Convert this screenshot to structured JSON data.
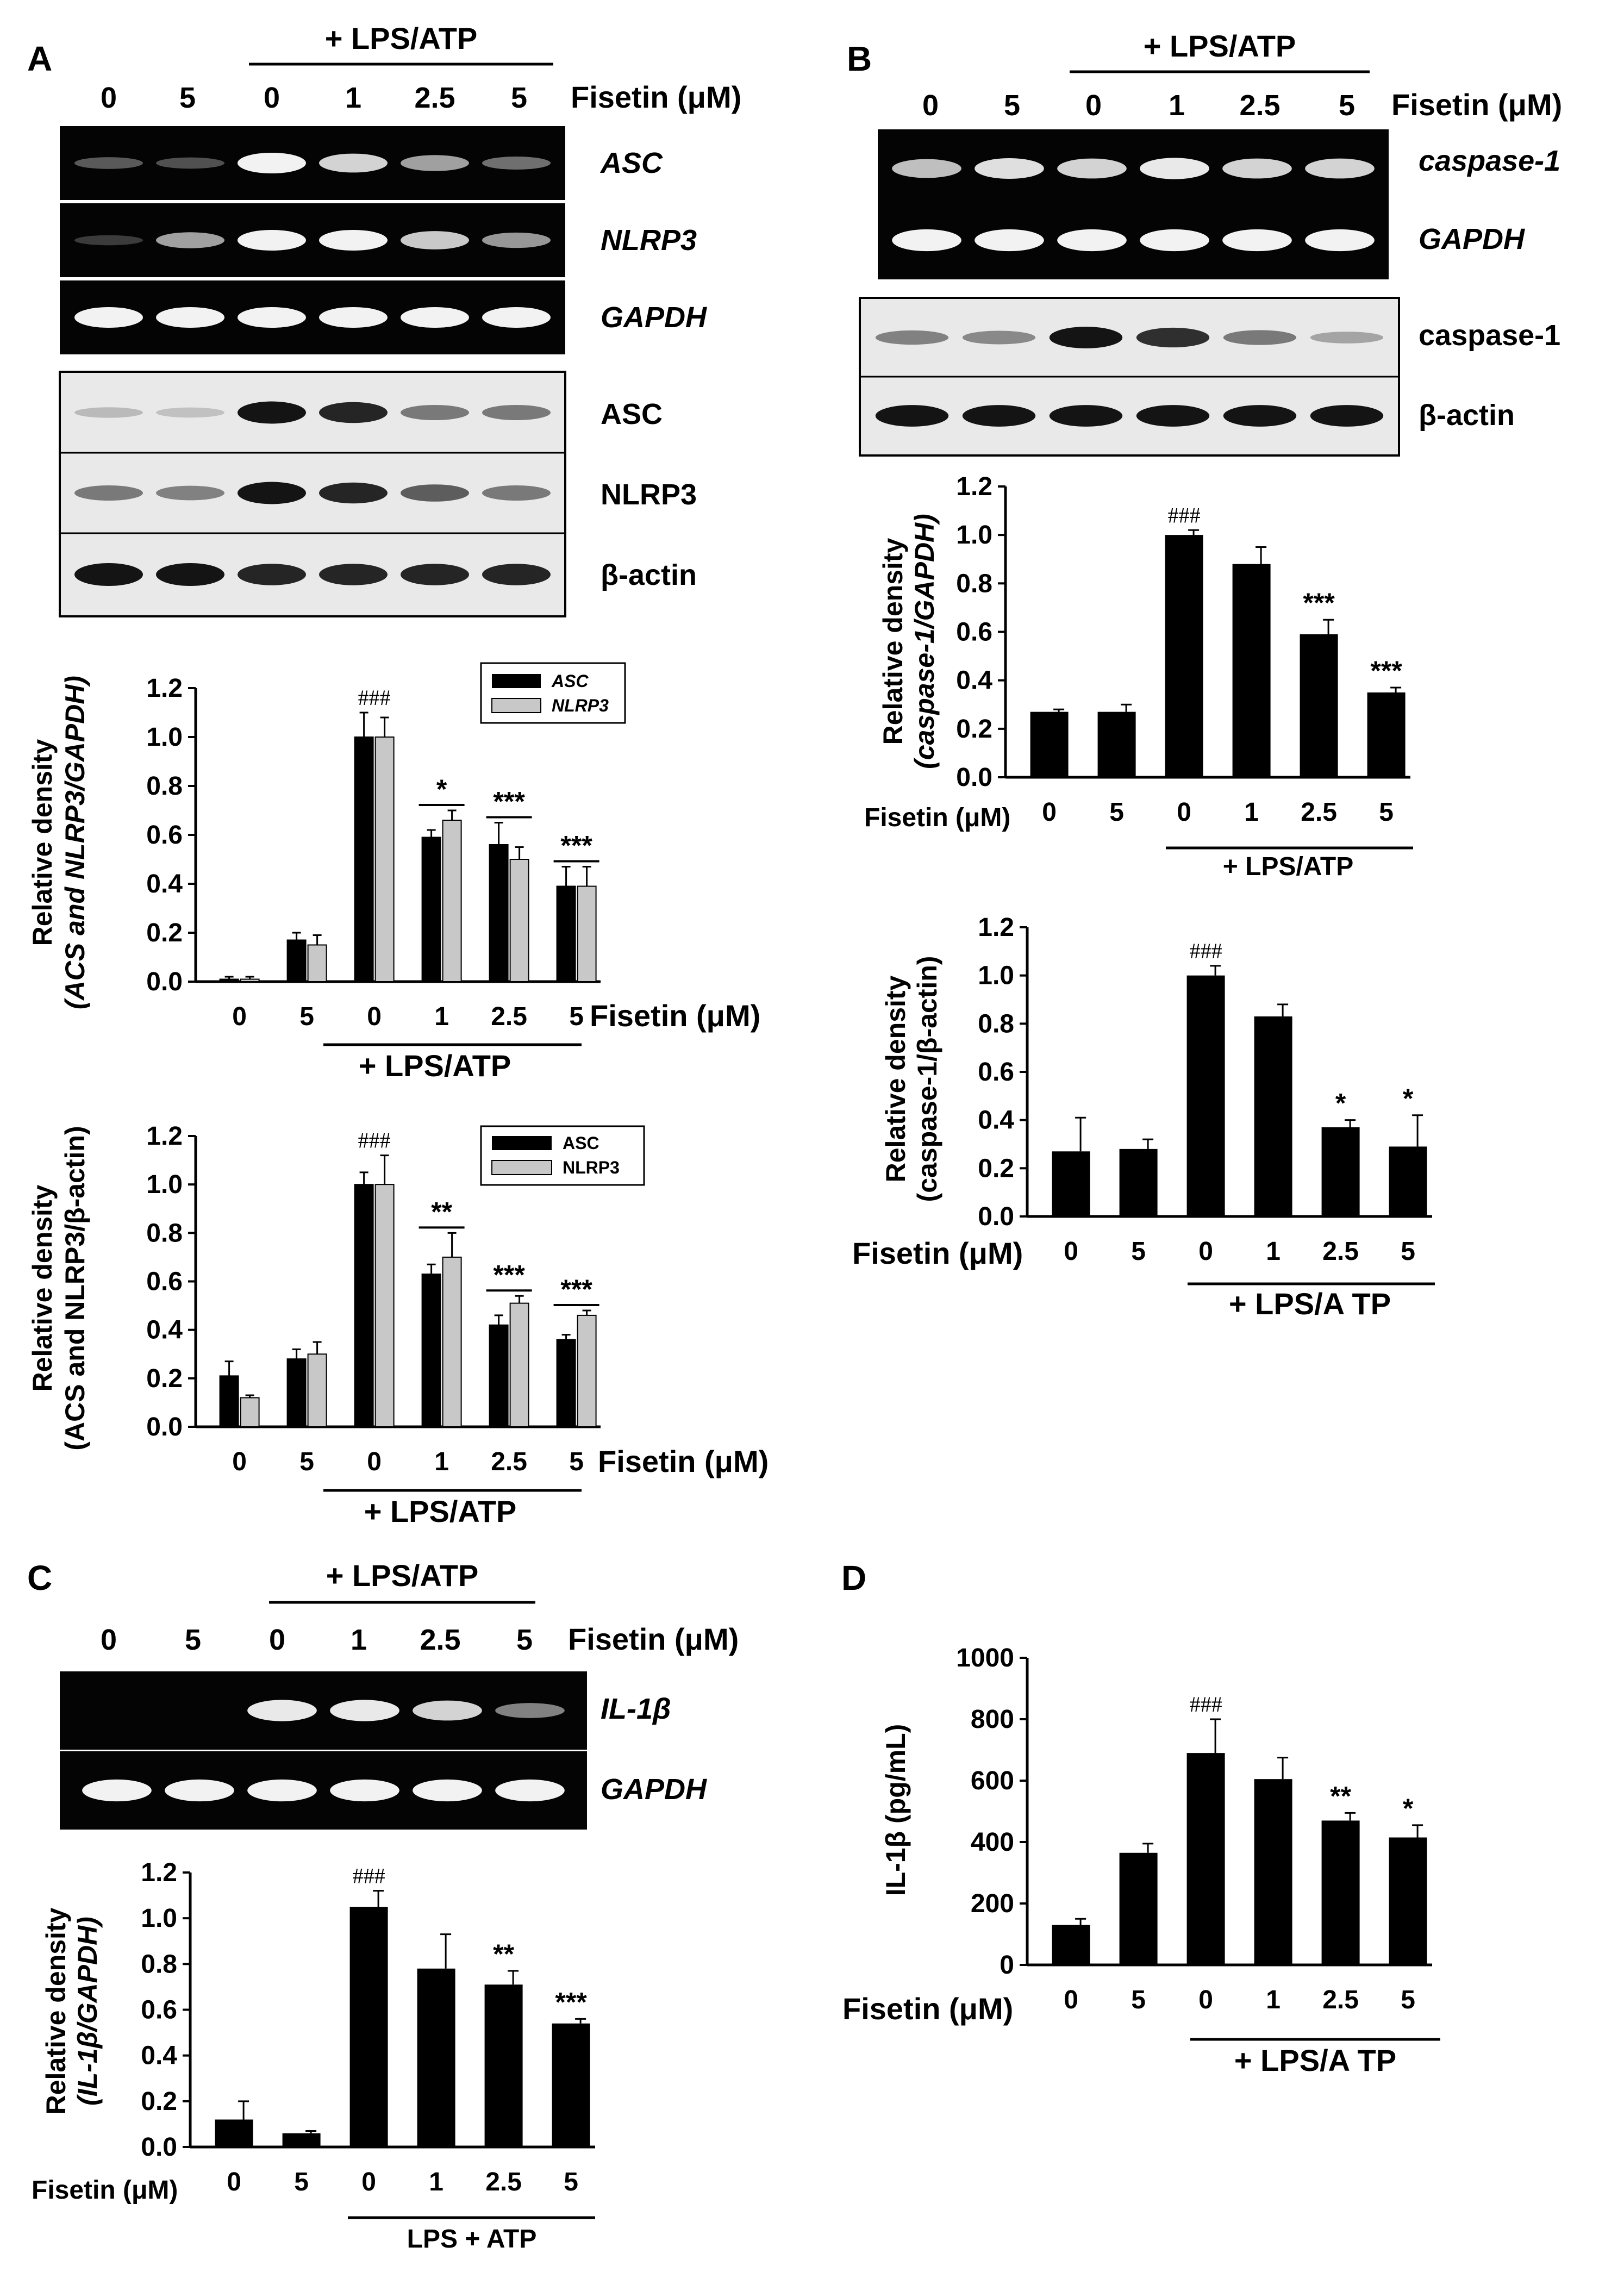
{
  "colors": {
    "bar_dark": "#000000",
    "bar_light": "#c8c8c8",
    "gel_bg": "#040404",
    "gel_band": "#f2f2f2",
    "wb_bg": "#e9e9e9",
    "wb_band": "#141414"
  },
  "common": {
    "lps_atp": "+ LPS/ATP",
    "lps_atp_alt": "+ LPS/A TP",
    "lps_plus_atp": "LPS + ATP",
    "fisetin_uM": "Fisetin (μM)",
    "lanes": [
      "0",
      "5",
      "0",
      "1",
      "2.5",
      "5"
    ]
  },
  "panel_A": {
    "letter": "A",
    "gel_labels": [
      "ASC",
      "NLRP3",
      "GAPDH"
    ],
    "blot_labels": [
      "ASC",
      "NLRP3",
      "β-actin"
    ],
    "gel_band_intensity": {
      "ASC": [
        0.25,
        0.2,
        1.0,
        0.85,
        0.6,
        0.35
      ],
      "NLRP3": [
        0.1,
        0.6,
        1.0,
        1.0,
        0.8,
        0.55
      ],
      "GAPDH": [
        1.0,
        1.0,
        1.0,
        1.0,
        1.0,
        1.0
      ]
    },
    "blot_band_intensity": {
      "ASC": [
        0.08,
        0.05,
        1.0,
        0.9,
        0.45,
        0.45
      ],
      "NLRP3": [
        0.45,
        0.4,
        1.0,
        0.9,
        0.6,
        0.45
      ],
      "beta_actin": [
        1.0,
        1.0,
        0.9,
        0.9,
        0.9,
        0.9
      ]
    }
  },
  "panel_B": {
    "letter": "B",
    "gel_labels": [
      "caspase-1",
      "GAPDH"
    ],
    "blot_labels": [
      "caspase-1",
      "β-actin"
    ],
    "gel_band_intensity": {
      "caspase1": [
        0.75,
        0.9,
        0.85,
        0.95,
        0.85,
        0.85
      ],
      "GAPDH": [
        1.0,
        1.0,
        1.0,
        1.0,
        1.0,
        1.0
      ]
    },
    "blot_band_intensity": {
      "caspase1": [
        0.4,
        0.35,
        1.0,
        0.85,
        0.45,
        0.2
      ],
      "beta_actin": [
        1.0,
        1.0,
        1.0,
        1.0,
        1.0,
        1.0
      ]
    }
  },
  "panel_C": {
    "letter": "C",
    "gel_labels": [
      "IL-1β",
      "GAPDH"
    ],
    "gel_band_intensity": {
      "IL1b": [
        0.0,
        0.0,
        0.95,
        0.95,
        0.85,
        0.45
      ],
      "GAPDH": [
        1.0,
        1.0,
        1.0,
        1.0,
        1.0,
        1.0
      ]
    }
  },
  "panel_D": {
    "letter": "D"
  },
  "chart_data": [
    {
      "id": "A1",
      "type": "bar",
      "categories": [
        "0",
        "5",
        "0",
        "1",
        "2.5",
        "5"
      ],
      "series": [
        {
          "name": "ASC",
          "values": [
            0.01,
            0.17,
            1.0,
            0.59,
            0.56,
            0.39
          ],
          "errors": [
            0.01,
            0.03,
            0.1,
            0.03,
            0.09,
            0.08
          ]
        },
        {
          "name": "NLRP3",
          "values": [
            0.01,
            0.15,
            1.0,
            0.66,
            0.5,
            0.39
          ],
          "errors": [
            0.01,
            0.04,
            0.08,
            0.04,
            0.05,
            0.08
          ]
        }
      ],
      "ylabel_top": "Relative density",
      "ylabel_bottom": "(ACS and NLRP3/GAPDH)",
      "ylim": [
        0,
        1.2
      ],
      "yticks": [
        "0.0",
        "0.2",
        "0.4",
        "0.6",
        "0.8",
        "1.0",
        "1.2"
      ],
      "annotations": [
        "",
        "",
        "###",
        "*",
        "***",
        "***"
      ],
      "legend": [
        "ASC",
        "NLRP3"
      ]
    },
    {
      "id": "A2",
      "type": "bar",
      "categories": [
        "0",
        "5",
        "0",
        "1",
        "2.5",
        "5"
      ],
      "series": [
        {
          "name": "ASC",
          "values": [
            0.21,
            0.28,
            1.0,
            0.63,
            0.42,
            0.36
          ],
          "errors": [
            0.06,
            0.04,
            0.05,
            0.04,
            0.04,
            0.02
          ]
        },
        {
          "name": "NLRP3",
          "values": [
            0.12,
            0.3,
            1.0,
            0.7,
            0.51,
            0.46
          ],
          "errors": [
            0.01,
            0.05,
            0.12,
            0.1,
            0.03,
            0.02
          ]
        }
      ],
      "ylabel_top": "Relative density",
      "ylabel_bottom": "(ACS and NLRP3/β-actin)",
      "ylim": [
        0,
        1.2
      ],
      "yticks": [
        "0.0",
        "0.2",
        "0.4",
        "0.6",
        "0.8",
        "1.0",
        "1.2"
      ],
      "annotations": [
        "",
        "",
        "###",
        "**",
        "***",
        "***"
      ],
      "legend": [
        "ASC",
        "NLRP3"
      ]
    },
    {
      "id": "B1",
      "type": "bar",
      "categories": [
        "0",
        "5",
        "0",
        "1",
        "2.5",
        "5"
      ],
      "values": [
        0.27,
        0.27,
        1.0,
        0.88,
        0.59,
        0.35
      ],
      "errors": [
        0.01,
        0.03,
        0.02,
        0.07,
        0.06,
        0.02
      ],
      "ylabel_top": "Relative density",
      "ylabel_bottom": "(caspase-1/GAPDH)",
      "ylim": [
        0,
        1.2
      ],
      "yticks": [
        "0.0",
        "0.2",
        "0.4",
        "0.6",
        "0.8",
        "1.0",
        "1.2"
      ],
      "annotations": [
        "",
        "",
        "###",
        "",
        "***",
        "***"
      ]
    },
    {
      "id": "B2",
      "type": "bar",
      "categories": [
        "0",
        "5",
        "0",
        "1",
        "2.5",
        "5"
      ],
      "values": [
        0.27,
        0.28,
        1.0,
        0.83,
        0.37,
        0.29
      ],
      "errors": [
        0.14,
        0.04,
        0.04,
        0.05,
        0.03,
        0.13
      ],
      "ylabel_top": "Relative density",
      "ylabel_bottom": "(caspase-1/β-actin)",
      "ylim": [
        0,
        1.2
      ],
      "yticks": [
        "0.0",
        "0.2",
        "0.4",
        "0.6",
        "0.8",
        "1.0",
        "1.2"
      ],
      "annotations": [
        "",
        "",
        "###",
        "",
        "*",
        "*"
      ]
    },
    {
      "id": "C1",
      "type": "bar",
      "categories": [
        "0",
        "5",
        "0",
        "1",
        "2.5",
        "5"
      ],
      "values": [
        0.12,
        0.06,
        1.05,
        0.78,
        0.71,
        0.54
      ],
      "errors": [
        0.08,
        0.01,
        0.07,
        0.15,
        0.06,
        0.02
      ],
      "ylabel_top": "Relative density",
      "ylabel_bottom": "(IL-1β/GAPDH)",
      "ylim": [
        0,
        1.2
      ],
      "yticks": [
        "0.0",
        "0.2",
        "0.4",
        "0.6",
        "0.8",
        "1.0",
        "1.2"
      ],
      "annotations": [
        "",
        "",
        "###",
        "",
        "**",
        "***"
      ]
    },
    {
      "id": "D1",
      "type": "bar",
      "categories": [
        "0",
        "5",
        "0",
        "1",
        "2.5",
        "5"
      ],
      "values": [
        130,
        365,
        690,
        605,
        470,
        415
      ],
      "errors": [
        20,
        30,
        110,
        70,
        25,
        40
      ],
      "ylabel_top": "IL-1β (pg/mL)",
      "ylabel_bottom": "",
      "ylim": [
        0,
        1000
      ],
      "yticks": [
        "0",
        "200",
        "400",
        "600",
        "800",
        "1000"
      ],
      "annotations": [
        "",
        "",
        "###",
        "",
        "**",
        "*"
      ]
    }
  ]
}
